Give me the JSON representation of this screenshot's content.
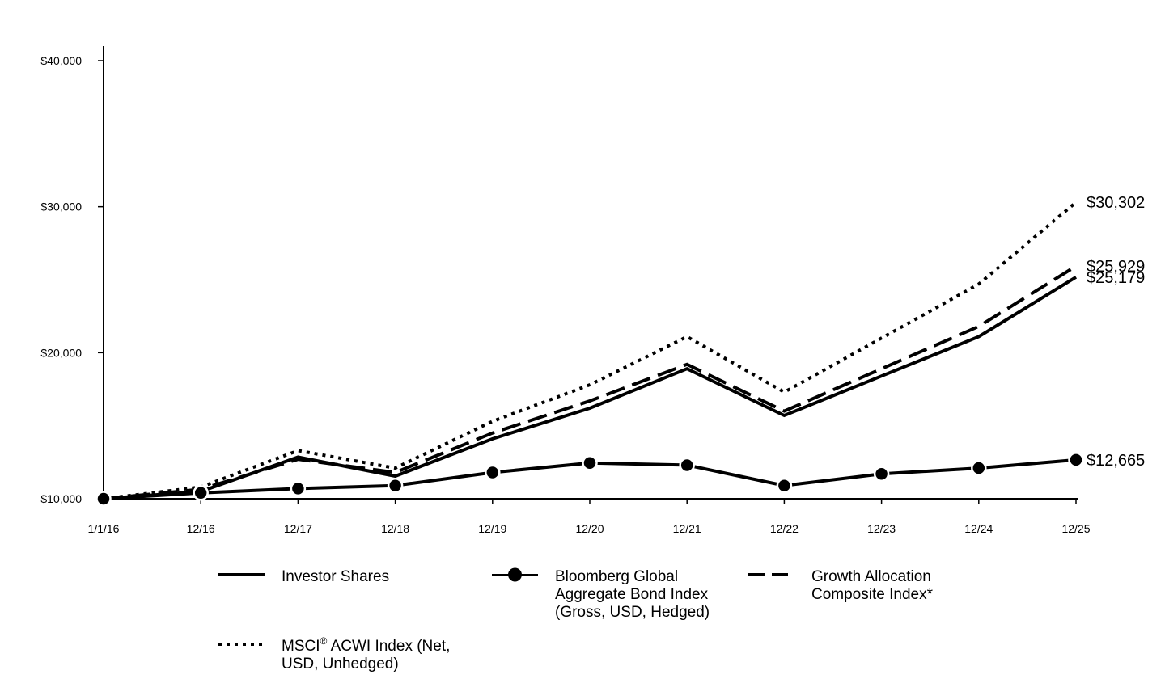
{
  "chart_data": {
    "type": "line",
    "x": [
      "1/1/16",
      "12/16",
      "12/17",
      "12/18",
      "12/19",
      "12/20",
      "12/21",
      "12/22",
      "12/23",
      "12/24",
      "12/25"
    ],
    "ylim": [
      10000,
      40000
    ],
    "y_ticks": [
      "$10,000",
      "$20,000",
      "$30,000",
      "$40,000"
    ],
    "grid": false,
    "legend_position": "bottom",
    "series": [
      {
        "name": "Investor Shares",
        "style": "solid",
        "values": [
          10000,
          10500,
          12850,
          11550,
          14100,
          16200,
          18900,
          15700,
          18400,
          21100,
          25179
        ],
        "end_label": "$25,179"
      },
      {
        "name": "Bloomberg Global Aggregate Bond Index (Gross, USD, Hedged)",
        "style": "solid-markers",
        "values": [
          10000,
          10400,
          10700,
          10900,
          11800,
          12450,
          12300,
          10900,
          11700,
          12100,
          12665
        ],
        "end_label": "$12,665"
      },
      {
        "name": "Growth Allocation Composite Index*",
        "style": "dashed",
        "values": [
          10000,
          10650,
          12700,
          11800,
          14500,
          16700,
          19200,
          16000,
          18900,
          21800,
          25929
        ],
        "end_label": "$25,929"
      },
      {
        "name": "MSCI® ACWI Index (Net, USD, Unhedged)",
        "style": "dotted",
        "values": [
          10000,
          10800,
          13300,
          12100,
          15300,
          17800,
          21100,
          17300,
          21000,
          24700,
          30302
        ],
        "end_label": "$30,302"
      }
    ],
    "legend": [
      {
        "lines": [
          "Investor Shares"
        ]
      },
      {
        "lines": [
          "Bloomberg Global",
          "Aggregate Bond Index",
          "(Gross, USD, Hedged)"
        ]
      },
      {
        "lines": [
          "Growth Allocation",
          "Composite Index*"
        ]
      },
      {
        "lines": [
          "MSCI",
          "® ACWI Index (Net,",
          "USD, Unhedged)"
        ]
      }
    ]
  },
  "colors": {
    "line": "#000000",
    "background": "#ffffff"
  }
}
